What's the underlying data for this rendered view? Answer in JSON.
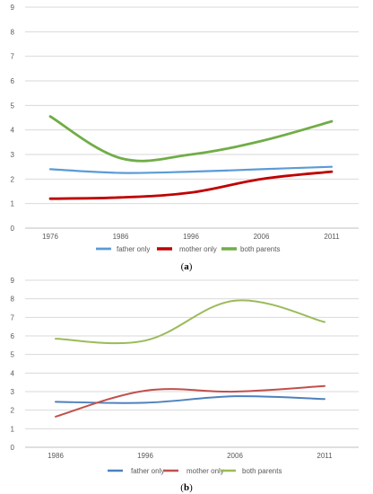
{
  "chart_data": [
    {
      "type": "line",
      "panel_label": "a",
      "categories": [
        "1976",
        "1986",
        "1996",
        "2006",
        "2011"
      ],
      "ylim": [
        0,
        9
      ],
      "yticks": [
        "0",
        "1",
        "2",
        "3",
        "4",
        "5",
        "6",
        "7",
        "8",
        "9"
      ],
      "grid": true,
      "legend_position": "bottom",
      "series": [
        {
          "name": "father only",
          "color": "#5B9BD5",
          "values": [
            2.4,
            2.25,
            2.3,
            2.4,
            2.5
          ]
        },
        {
          "name": "mother only",
          "color": "#C00000",
          "values": [
            1.2,
            1.25,
            1.45,
            2.0,
            2.3
          ]
        },
        {
          "name": "both parents",
          "color": "#70AD47",
          "values": [
            4.55,
            2.85,
            3.0,
            3.55,
            4.35
          ]
        }
      ]
    },
    {
      "type": "line",
      "panel_label": "b",
      "categories": [
        "1986",
        "1996",
        "2006",
        "2011"
      ],
      "ylim": [
        0,
        9
      ],
      "yticks": [
        "0",
        "1",
        "2",
        "3",
        "4",
        "5",
        "6",
        "7",
        "8",
        "9"
      ],
      "grid": true,
      "legend_position": "bottom",
      "series": [
        {
          "name": "father only",
          "color": "#4F81BD",
          "values": [
            2.45,
            2.4,
            2.75,
            2.6
          ]
        },
        {
          "name": "mother only",
          "color": "#C0504D",
          "values": [
            1.65,
            3.05,
            3.0,
            3.3
          ]
        },
        {
          "name": "both parents",
          "color": "#9BBB59",
          "values": [
            5.85,
            5.75,
            7.9,
            6.75
          ]
        }
      ]
    }
  ]
}
